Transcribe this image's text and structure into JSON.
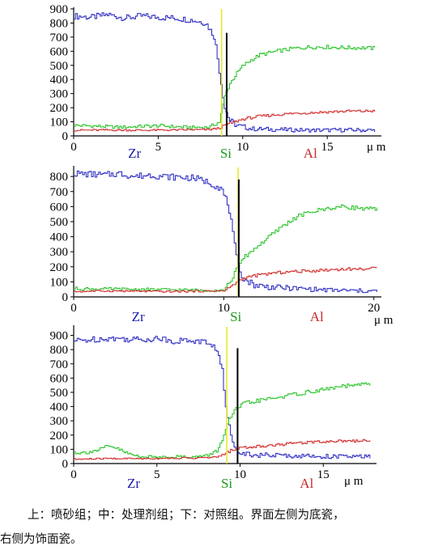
{
  "chart_data": [
    {
      "type": "line",
      "title": "",
      "xlabel": "",
      "xunit": "μ m",
      "ylabel": "",
      "xlim": [
        0,
        18.2
      ],
      "ylim": [
        0,
        900
      ],
      "yticks": [
        0,
        100,
        200,
        300,
        400,
        500,
        600,
        700,
        800,
        900
      ],
      "xticks": [
        0,
        5,
        10,
        15
      ],
      "series_labels": [
        {
          "name": "Zr",
          "x": 3.6,
          "color": "#1a1aa6"
        },
        {
          "name": "Si",
          "x": 9.0,
          "color": "#1a9a1a"
        },
        {
          "name": "Al",
          "x": 14.0,
          "color": "#c82828"
        }
      ],
      "series": [
        {
          "name": "Zr",
          "color": "#2020c0",
          "x": [
            0,
            1,
            2,
            3,
            4,
            5,
            6,
            7,
            7.8,
            8.3,
            8.6,
            8.9,
            9.2,
            9.6,
            10.5,
            12,
            14,
            16,
            17.8
          ],
          "values": [
            850,
            840,
            860,
            835,
            850,
            840,
            835,
            820,
            800,
            700,
            450,
            200,
            110,
            75,
            50,
            45,
            40,
            42,
            40
          ]
        },
        {
          "name": "Si",
          "color": "#20c020",
          "x": [
            0,
            1,
            2,
            3,
            4,
            5,
            6,
            7,
            8,
            8.6,
            8.9,
            9.2,
            9.6,
            10,
            10.5,
            11,
            12,
            13,
            14,
            15,
            16,
            17,
            17.8
          ],
          "values": [
            75,
            70,
            65,
            62,
            68,
            72,
            65,
            60,
            62,
            100,
            280,
            370,
            440,
            500,
            540,
            575,
            600,
            620,
            630,
            630,
            625,
            625,
            620
          ]
        },
        {
          "name": "Al",
          "color": "#d02020",
          "x": [
            0,
            2,
            4,
            6,
            8,
            8.6,
            9,
            9.5,
            10,
            11,
            12,
            13,
            14,
            15,
            16,
            17,
            17.8
          ],
          "values": [
            40,
            42,
            40,
            42,
            45,
            55,
            80,
            100,
            120,
            140,
            150,
            160,
            165,
            170,
            175,
            175,
            178
          ]
        }
      ],
      "markers": [
        {
          "color": "#e8e820",
          "x": 8.75,
          "top": 900
        },
        {
          "color": "#000000",
          "x": 9.05,
          "top": 730
        }
      ]
    },
    {
      "type": "line",
      "title": "",
      "xlabel": "",
      "xunit": "μ m",
      "ylabel": "",
      "xlim": [
        0,
        20.5
      ],
      "ylim": [
        0,
        860
      ],
      "yticks": [
        0,
        100,
        200,
        300,
        400,
        500,
        600,
        700,
        800
      ],
      "xticks": [
        0,
        10,
        20
      ],
      "series_labels": [
        {
          "name": "Zr",
          "x": 4.3,
          "color": "#1a1aa6"
        },
        {
          "name": "Si",
          "x": 10.8,
          "color": "#1a9a1a"
        },
        {
          "name": "Al",
          "x": 16.2,
          "color": "#c82828"
        }
      ],
      "series": [
        {
          "name": "Zr",
          "color": "#2020c0",
          "x": [
            0,
            1,
            2,
            3,
            4,
            5,
            6,
            7,
            8,
            9,
            9.8,
            10.3,
            10.6,
            10.9,
            11.3,
            12,
            13,
            15,
            17,
            19,
            20.2
          ],
          "values": [
            820,
            815,
            810,
            820,
            800,
            810,
            800,
            795,
            790,
            760,
            720,
            600,
            400,
            200,
            120,
            80,
            65,
            55,
            45,
            40,
            38
          ]
        },
        {
          "name": "Si",
          "color": "#20c020",
          "x": [
            0,
            2,
            4,
            6,
            8,
            10,
            10.5,
            10.9,
            11.3,
            12,
            13,
            14,
            15,
            16,
            17,
            18,
            19,
            20.2
          ],
          "values": [
            55,
            52,
            50,
            48,
            45,
            45,
            120,
            200,
            260,
            320,
            400,
            480,
            540,
            570,
            590,
            600,
            590,
            580
          ]
        },
        {
          "name": "Al",
          "color": "#d02020",
          "x": [
            0,
            2,
            4,
            6,
            8,
            10,
            10.6,
            11,
            11.5,
            12,
            13,
            14,
            15,
            16,
            17,
            18,
            19,
            20.2
          ],
          "values": [
            35,
            40,
            38,
            35,
            38,
            40,
            80,
            110,
            130,
            140,
            155,
            165,
            170,
            175,
            180,
            185,
            185,
            190
          ]
        }
      ],
      "markers": [
        {
          "color": "#e8e820",
          "x": 10.95,
          "top": 860
        },
        {
          "color": "#000000",
          "x": 11.0,
          "top": 780
        }
      ]
    },
    {
      "type": "line",
      "title": "",
      "xlabel": "",
      "xunit": "μ m",
      "ylabel": "",
      "xlim": [
        0,
        18.2
      ],
      "ylim": [
        0,
        960
      ],
      "yticks": [
        0,
        100,
        200,
        300,
        400,
        500,
        600,
        700,
        800,
        900
      ],
      "xticks": [
        0,
        5,
        10,
        15
      ],
      "series_labels": [
        {
          "name": "Zr",
          "x": 3.6,
          "color": "#1a1aa6"
        },
        {
          "name": "Si",
          "x": 9.2,
          "color": "#1a9a1a"
        },
        {
          "name": "Al",
          "x": 14.0,
          "color": "#c82828"
        }
      ],
      "series": [
        {
          "name": "Zr",
          "color": "#2020c0",
          "x": [
            0,
            1,
            2,
            3,
            4,
            5,
            6,
            7,
            8,
            8.6,
            8.9,
            9.1,
            9.4,
            9.7,
            10.2,
            11,
            13,
            15,
            17,
            17.8
          ],
          "values": [
            860,
            870,
            880,
            875,
            870,
            880,
            860,
            865,
            850,
            800,
            650,
            400,
            200,
            110,
            70,
            60,
            55,
            50,
            48,
            48
          ]
        },
        {
          "name": "Si",
          "color": "#20c020",
          "x": [
            0,
            0.5,
            1,
            1.5,
            2,
            2.5,
            3,
            3.5,
            4,
            5,
            6,
            7,
            8,
            8.6,
            9,
            9.3,
            9.7,
            10.2,
            11,
            12,
            13,
            14,
            15,
            16,
            17,
            17.8
          ],
          "values": [
            80,
            75,
            85,
            95,
            120,
            110,
            80,
            60,
            50,
            45,
            50,
            45,
            55,
            90,
            200,
            300,
            380,
            420,
            440,
            460,
            480,
            500,
            520,
            540,
            550,
            560
          ]
        },
        {
          "name": "Al",
          "color": "#d02020",
          "x": [
            0,
            2,
            4,
            6,
            8,
            8.8,
            9.2,
            9.6,
            10,
            11,
            12,
            13,
            14,
            15,
            16,
            17,
            17.8
          ],
          "values": [
            30,
            35,
            35,
            38,
            40,
            50,
            80,
            100,
            110,
            120,
            130,
            140,
            150,
            155,
            160,
            160,
            165
          ]
        }
      ],
      "markers": [
        {
          "color": "#e8e820",
          "x": 9.2,
          "top": 960
        },
        {
          "color": "#000000",
          "x": 9.85,
          "top": 810
        }
      ]
    }
  ],
  "caption": {
    "line1": "上：喷砂组；中：处理剂组；下：对照组。界面左侧为底瓷，",
    "line2": "右侧为饰面瓷。"
  }
}
